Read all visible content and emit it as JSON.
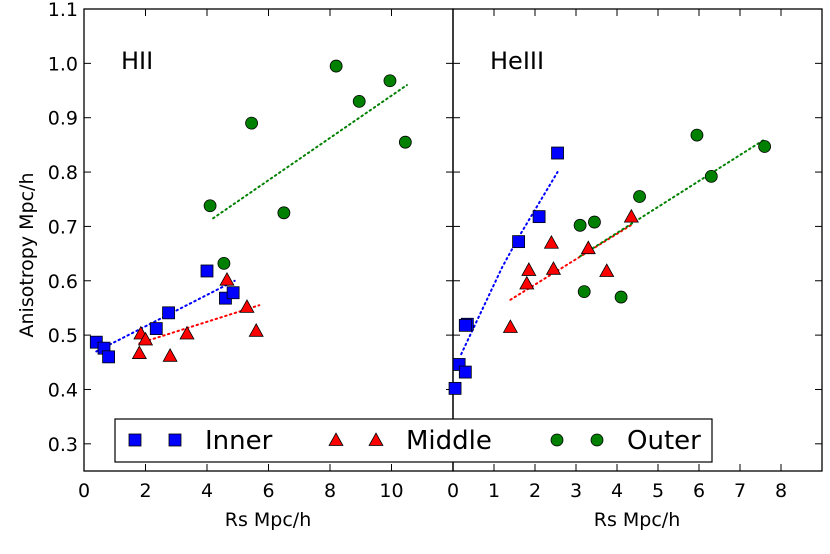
{
  "chart_data": {
    "type": "scatter",
    "ylabel": "Anisotropy Mpc/h",
    "ylim": [
      0.25,
      1.1
    ],
    "yticks": [
      "0.3",
      "0.4",
      "0.5",
      "0.6",
      "0.7",
      "0.8",
      "0.9",
      "1.0",
      "1.1"
    ],
    "legend": {
      "placement": "bottom",
      "entries": [
        {
          "label": "Inner",
          "marker": "square",
          "color": "#0000ff"
        },
        {
          "label": "Middle",
          "marker": "triangle",
          "color": "#ff0000"
        },
        {
          "label": "Outer",
          "marker": "circle",
          "color": "#008000"
        }
      ]
    },
    "panels": [
      {
        "title": "HII",
        "xlabel": "Rs Mpc/h",
        "xlim": [
          0,
          12
        ],
        "xticks": [
          "0",
          "2",
          "4",
          "6",
          "8",
          "10"
        ],
        "series": [
          {
            "name": "Inner",
            "marker": "square",
            "color": "#0000ff",
            "x": [
              0.4,
              0.65,
              0.8,
              2.35,
              2.75,
              4.0,
              4.6,
              4.85
            ],
            "y": [
              0.487,
              0.476,
              0.46,
              0.512,
              0.541,
              0.618,
              0.568,
              0.578
            ],
            "fit": {
              "x": [
                0.4,
                4.9
              ],
              "y": [
                0.47,
                0.6
              ]
            }
          },
          {
            "name": "Middle",
            "marker": "triangle",
            "color": "#ff0000",
            "x": [
              1.8,
              1.85,
              2.0,
              2.8,
              3.35,
              4.65,
              5.3,
              5.6
            ],
            "y": [
              0.467,
              0.503,
              0.492,
              0.462,
              0.503,
              0.602,
              0.552,
              0.508
            ],
            "fit": {
              "x": [
                1.8,
                5.7
              ],
              "y": [
                0.485,
                0.555
              ]
            }
          },
          {
            "name": "Outer",
            "marker": "circle",
            "color": "#008000",
            "x": [
              4.1,
              4.55,
              5.45,
              6.5,
              8.2,
              8.95,
              9.95,
              10.45
            ],
            "y": [
              0.738,
              0.632,
              0.89,
              0.725,
              0.995,
              0.93,
              0.968,
              0.855
            ],
            "fit": {
              "x": [
                4.2,
                10.5
              ],
              "y": [
                0.715,
                0.96
              ]
            }
          }
        ]
      },
      {
        "title": "HeIII",
        "xlabel": "Rs Mpc/h",
        "xlim": [
          0,
          9
        ],
        "xticks": [
          "0",
          "1",
          "2",
          "3",
          "4",
          "5",
          "6",
          "7",
          "8"
        ],
        "series": [
          {
            "name": "Inner",
            "marker": "square",
            "color": "#0000ff",
            "x": [
              0.05,
              0.15,
              0.3,
              0.35,
              0.3,
              1.6,
              2.1,
              2.55
            ],
            "y": [
              0.402,
              0.446,
              0.432,
              0.52,
              0.518,
              0.672,
              0.718,
              0.835
            ],
            "fit": {
              "x": [
                0.2,
                1.2,
                1.6,
                2.55
              ],
              "y": [
                0.465,
                0.625,
                0.68,
                0.8
              ]
            }
          },
          {
            "name": "Middle",
            "marker": "triangle",
            "color": "#ff0000",
            "x": [
              1.4,
              1.8,
              1.85,
              2.4,
              2.45,
              3.3,
              3.75,
              4.35
            ],
            "y": [
              0.515,
              0.595,
              0.62,
              0.67,
              0.622,
              0.66,
              0.618,
              0.718
            ],
            "fit": {
              "x": [
                1.4,
                4.4
              ],
              "y": [
                0.565,
                0.705
              ]
            }
          },
          {
            "name": "Outer",
            "marker": "circle",
            "color": "#008000",
            "x": [
              3.1,
              3.2,
              3.45,
              4.1,
              4.55,
              5.95,
              6.3,
              7.6
            ],
            "y": [
              0.702,
              0.58,
              0.708,
              0.57,
              0.755,
              0.868,
              0.792,
              0.847
            ],
            "fit": {
              "x": [
                3.1,
                7.6
              ],
              "y": [
                0.645,
                0.86
              ]
            }
          }
        ]
      }
    ]
  }
}
